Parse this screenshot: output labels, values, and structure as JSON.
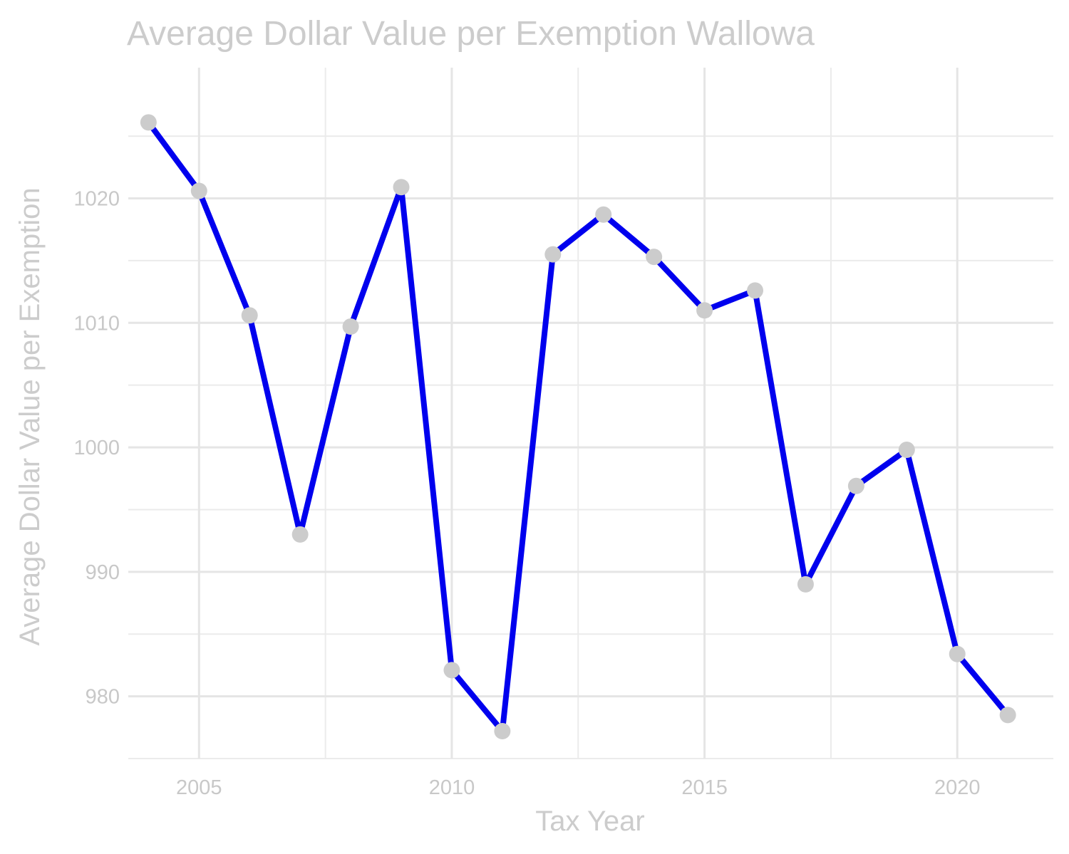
{
  "chart_data": {
    "type": "line",
    "title": "Average Dollar Value per Exemption Wallowa",
    "xlabel": "Tax Year",
    "ylabel": "Average Dollar Value per Exemption",
    "x": [
      2004,
      2005,
      2006,
      2007,
      2008,
      2009,
      2010,
      2011,
      2012,
      2013,
      2014,
      2015,
      2016,
      2017,
      2018,
      2019,
      2020,
      2021
    ],
    "series": [
      {
        "values": [
          1026.1,
          1020.6,
          1010.6,
          993.0,
          1009.7,
          1020.9,
          982.1,
          977.2,
          1015.5,
          1018.7,
          1015.3,
          1011.0,
          1012.6,
          989.0,
          996.9,
          999.8,
          983.4,
          978.5
        ],
        "color": "#0000ee",
        "point_color": "#cccccc"
      }
    ],
    "xlim": [
      2003.6,
      2021.9
    ],
    "ylim": [
      975.0,
      1030.5
    ],
    "x_ticks": [
      2005,
      2010,
      2015,
      2020
    ],
    "x_tick_labels": [
      "2005",
      "2010",
      "2015",
      "2020"
    ],
    "y_ticks": [
      980,
      990,
      1000,
      1010,
      1020
    ],
    "y_tick_labels": [
      "980",
      "990",
      "1000",
      "1010",
      "1020"
    ],
    "grid": true,
    "legend": "none"
  }
}
